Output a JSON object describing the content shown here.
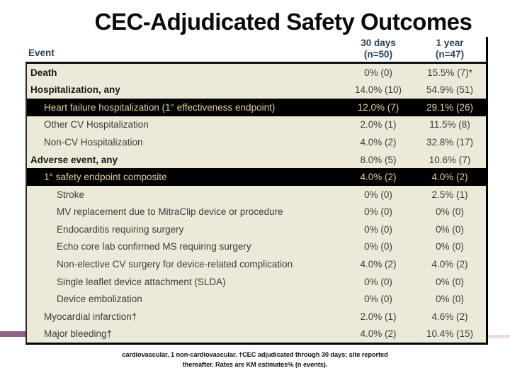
{
  "slide": {
    "title": "CEC-Adjudicated Safety Outcomes"
  },
  "table": {
    "headers": {
      "event": "Event",
      "col30_line1": "30 days",
      "col30_line2": "(n=50)",
      "col1y_line1": "1 year",
      "col1y_line2": "(n=47)"
    },
    "rows": [
      {
        "label": "Death",
        "d30": "0% (0)",
        "y1": "15.5% (7)*",
        "indent": 0,
        "bold": true,
        "highlight": false
      },
      {
        "label": "Hospitalization, any",
        "d30": "14.0% (10)",
        "y1": "54.9% (51)",
        "indent": 0,
        "bold": true,
        "highlight": false
      },
      {
        "label": "Heart failure hospitalization (1° effectiveness endpoint)",
        "d30": "12.0% (7)",
        "y1": "29.1% (26)",
        "indent": 1,
        "bold": false,
        "highlight": true
      },
      {
        "label": "Other CV Hospitalization",
        "d30": "2.0% (1)",
        "y1": "11.5% (8)",
        "indent": 1,
        "bold": false,
        "highlight": false
      },
      {
        "label": "Non-CV Hospitalization",
        "d30": "4.0% (2)",
        "y1": "32.8% (17)",
        "indent": 1,
        "bold": false,
        "highlight": false
      },
      {
        "label": "Adverse event, any",
        "d30": "8.0% (5)",
        "y1": "10.6% (7)",
        "indent": 0,
        "bold": true,
        "highlight": false
      },
      {
        "label": "1° safety endpoint composite",
        "d30": "4.0% (2)",
        "y1": "4.0% (2)",
        "indent": 1,
        "bold": false,
        "highlight": true
      },
      {
        "label": "Stroke",
        "d30": "0% (0)",
        "y1": "2.5% (1)",
        "indent": 2,
        "bold": false,
        "highlight": false
      },
      {
        "label": "MV replacement due to MitraClip device or procedure",
        "d30": "0% (0)",
        "y1": "0% (0)",
        "indent": 2,
        "bold": false,
        "highlight": false
      },
      {
        "label": "Endocarditis requiring surgery",
        "d30": "0% (0)",
        "y1": "0% (0)",
        "indent": 2,
        "bold": false,
        "highlight": false
      },
      {
        "label": "Echo core lab confirmed MS requiring surgery",
        "d30": "0% (0)",
        "y1": "0% (0)",
        "indent": 2,
        "bold": false,
        "highlight": false
      },
      {
        "label": "Non-elective CV surgery for device-related complication",
        "d30": "4.0% (2)",
        "y1": "4.0% (2)",
        "indent": 2,
        "bold": false,
        "highlight": false
      },
      {
        "label": "Single leaflet device attachment (SLDA)",
        "d30": "0% (0)",
        "y1": "0% (0)",
        "indent": 2,
        "bold": false,
        "highlight": false
      },
      {
        "label": "Device embolization",
        "d30": "0% (0)",
        "y1": "0% (0)",
        "indent": 2,
        "bold": false,
        "highlight": false
      },
      {
        "label": "Myocardial infarction†",
        "d30": "2.0% (1)",
        "y1": "4.6% (2)",
        "indent": 1,
        "bold": false,
        "highlight": false
      },
      {
        "label": "Major bleeding†",
        "d30": "4.0% (2)",
        "y1": "10.4% (15)",
        "indent": 1,
        "bold": false,
        "highlight": false
      }
    ]
  },
  "footnote": {
    "line1": "cardiovascular, 1 non-cardiovascular.  †CEC adjudicated through 30 days; site reported",
    "line2": "thereafter.  Rates are KM estimates% (n events)."
  },
  "colors": {
    "table_body_bg": "#ECE9D8",
    "highlight_row_bg": "#000000",
    "highlight_row_text": "#E4CFA0",
    "header_text": "#2C4257",
    "body_text": "#3D3D3D",
    "accent_left_bar": "#8F6386",
    "accent_right_bar": "#F0DBE2",
    "border": "#000000"
  }
}
